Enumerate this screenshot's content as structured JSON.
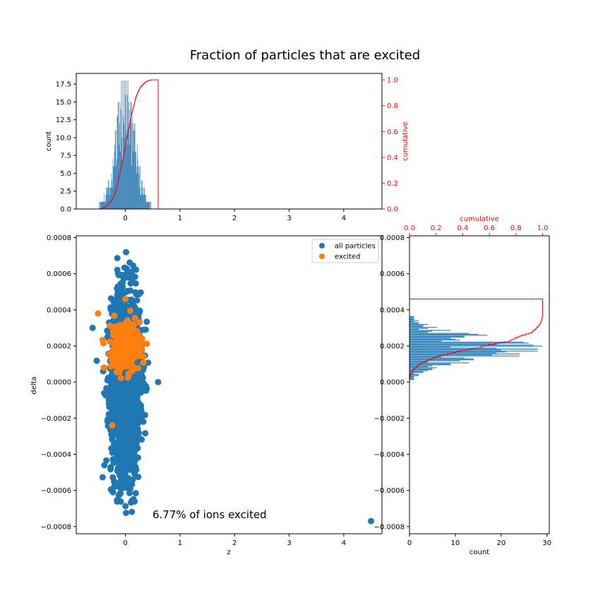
{
  "chart_data": {
    "title": "Fraction of particles that are excited",
    "annotation": "6.77% of ions excited",
    "colors": {
      "all": "#1f77b4",
      "excited": "#ff7f0e",
      "cumulative": "#ff0000"
    },
    "scatter": {
      "type": "scatter",
      "xlabel": "z",
      "ylabel": "delta",
      "xlim": [
        -0.9,
        4.7
      ],
      "ylim": [
        -0.00084,
        0.00081
      ],
      "xticks": [
        0,
        1,
        2,
        3,
        4
      ],
      "yticks": [
        -0.0008,
        -0.0006,
        -0.0004,
        -0.0002,
        0.0,
        0.0002,
        0.0004,
        0.0006,
        0.0008
      ],
      "ytick_labels": [
        "−0.0008",
        "−0.0006",
        "−0.0004",
        "−0.0002",
        "0.0000",
        "0.0002",
        "0.0004",
        "0.0006",
        "0.0008"
      ],
      "legend": {
        "placement": "upper right",
        "entries": [
          "all particles",
          "excited"
        ]
      },
      "series": [
        {
          "name": "all particles",
          "distribution": {
            "center": [
              0.0,
              0.0
            ],
            "spread": [
              0.13,
              0.00025
            ],
            "count": 2200
          },
          "outliers": [
            [
              4.5,
              -0.00077
            ],
            [
              -0.6,
              0.0003
            ],
            [
              0.6,
              0.0
            ]
          ]
        },
        {
          "name": "excited",
          "distribution": {
            "center": [
              0.0,
              0.0002
            ],
            "spread": [
              0.13,
              7e-05
            ],
            "count": 300
          },
          "outliers": [
            [
              -0.24,
              -0.00024
            ],
            [
              -0.5,
              0.00038
            ],
            [
              0.0,
              0.00046
            ]
          ]
        }
      ]
    },
    "z_hist": {
      "type": "bar",
      "ylabel": "count",
      "y2label": "cumulative",
      "xlim": [
        -0.9,
        4.7
      ],
      "ylim": [
        0,
        19
      ],
      "y2lim": [
        0,
        1.05
      ],
      "xticks": [
        0,
        1,
        2,
        3,
        4
      ],
      "yticks": [
        0.0,
        2.5,
        5.0,
        7.5,
        10.0,
        12.5,
        15.0,
        17.5
      ],
      "y2ticks": [
        0.0,
        0.2,
        0.4,
        0.6,
        0.8,
        1.0
      ],
      "bins": {
        "start": -0.6,
        "end": 0.6,
        "peak_center": 0.0,
        "peak_sigma": 0.18,
        "peak": 15,
        "max": 18
      },
      "cumulative_range": [
        -0.58,
        0.58
      ]
    },
    "delta_hist": {
      "type": "bar",
      "xlabel": "count",
      "x2label": "cumulative",
      "xlim": [
        0,
        30.5
      ],
      "x2lim": [
        0,
        1.05
      ],
      "xticks": [
        0,
        10,
        20,
        30
      ],
      "x2ticks": [
        0.0,
        0.2,
        0.4,
        0.6,
        0.8,
        1.0
      ],
      "ylim": [
        -0.00084,
        0.00081
      ],
      "yticks": [
        -0.0008,
        -0.0006,
        -0.0004,
        -0.0002,
        0.0,
        0.0002,
        0.0004,
        0.0006,
        0.0008
      ],
      "ytick_labels": [
        "−0.0008",
        "−0.0006",
        "−0.0004",
        "−0.0002",
        "0.0000",
        "0.0002",
        "0.0004",
        "0.0006",
        "0.0008"
      ],
      "bins": {
        "start": -6e-05,
        "end": 0.00043,
        "peak_center": 0.00019,
        "peak_sigma": 6.5e-05,
        "peak": 24,
        "max": 29
      },
      "cumulative_range": [
        -4e-05,
        0.00046
      ]
    }
  }
}
